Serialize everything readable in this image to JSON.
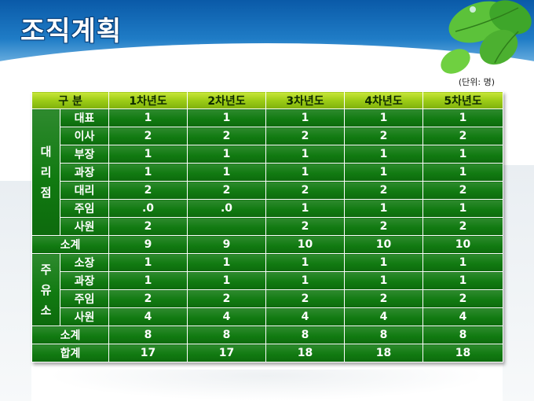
{
  "slide": {
    "title": "조직계획",
    "unit": "(단위: 명)"
  },
  "table": {
    "headers": [
      "구 분",
      "1차년도",
      "2차년도",
      "3차년도",
      "4차년도",
      "5차년도"
    ],
    "groups": [
      {
        "label": "대\n리\n점",
        "rows": [
          {
            "role": "대표",
            "values": [
              "1",
              "1",
              "1",
              "1",
              "1"
            ]
          },
          {
            "role": "이사",
            "values": [
              "2",
              "2",
              "2",
              "2",
              "2"
            ]
          },
          {
            "role": "부장",
            "values": [
              "1",
              "1",
              "1",
              "1",
              "1"
            ]
          },
          {
            "role": "과장",
            "values": [
              "1",
              "1",
              "1",
              "1",
              "1"
            ]
          },
          {
            "role": "대리",
            "values": [
              "2",
              "2",
              "2",
              "2",
              "2"
            ]
          },
          {
            "role": "주임",
            "values": [
              ".0",
              ".0",
              "1",
              "1",
              "1"
            ]
          },
          {
            "role": "사원",
            "values": [
              "2",
              "",
              "2",
              "2",
              "2"
            ]
          }
        ],
        "subtotal": {
          "label": "소계",
          "values": [
            "9",
            "9",
            "10",
            "10",
            "10"
          ]
        }
      },
      {
        "label": "주\n유\n소",
        "rows": [
          {
            "role": "소장",
            "values": [
              "1",
              "1",
              "1",
              "1",
              "1"
            ]
          },
          {
            "role": "과장",
            "values": [
              "1",
              "1",
              "1",
              "1",
              "1"
            ]
          },
          {
            "role": "주임",
            "values": [
              "2",
              "2",
              "2",
              "2",
              "2"
            ]
          },
          {
            "role": "사원",
            "values": [
              "4",
              "4",
              "4",
              "4",
              "4"
            ]
          }
        ],
        "subtotal": {
          "label": "소계",
          "values": [
            "8",
            "8",
            "8",
            "8",
            "8"
          ]
        }
      }
    ],
    "total": {
      "label": "합계",
      "values": [
        "17",
        "17",
        "18",
        "18",
        "18"
      ]
    }
  },
  "colors": {
    "header_band": "#1f7cc6",
    "table_header": "#9ccc16",
    "table_body": "#117a11"
  }
}
